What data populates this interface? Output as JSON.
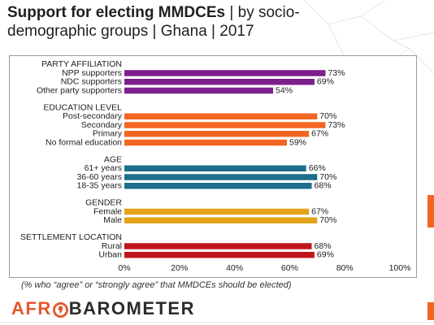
{
  "header": {
    "title_bold": "Support for electing MMDCEs",
    "title_rest": "| by socio-demographic groups | Ghana | 2017"
  },
  "footnote": "(% who “agree” or “strongly agree” that MMDCEs should be elected)",
  "logo": {
    "part1": "AFR",
    "part2": "BAROMETER"
  },
  "colors": {
    "party": "#7d1f8c",
    "education": "#f26522",
    "age": "#1c6e8c",
    "gender": "#e3a31a",
    "settlement": "#c0161b",
    "accent": "#f26522"
  },
  "chart_data": {
    "type": "bar",
    "orientation": "horizontal",
    "xlim": [
      0,
      100
    ],
    "xticks": [
      "0%",
      "20%",
      "40%",
      "60%",
      "80%",
      "100%"
    ],
    "grid": false,
    "groups": [
      {
        "name": "PARTY AFFILIATION",
        "color": "#7d1f8c",
        "bars": [
          {
            "label": "NPP supporters",
            "value": 73
          },
          {
            "label": "NDC supporters",
            "value": 69
          },
          {
            "label": "Other party supporters",
            "value": 54
          }
        ]
      },
      {
        "name": "EDUCATION LEVEL",
        "color": "#f26522",
        "bars": [
          {
            "label": "Post-secondary",
            "value": 70
          },
          {
            "label": "Secondary",
            "value": 73
          },
          {
            "label": "Primary",
            "value": 67
          },
          {
            "label": "No formal education",
            "value": 59
          }
        ]
      },
      {
        "name": "AGE",
        "color": "#1c6e8c",
        "bars": [
          {
            "label": "61+ years",
            "value": 66
          },
          {
            "label": "36-60 years",
            "value": 70
          },
          {
            "label": "18-35 years",
            "value": 68
          }
        ]
      },
      {
        "name": "GENDER",
        "color": "#e3a31a",
        "bars": [
          {
            "label": "Female",
            "value": 67
          },
          {
            "label": "Male",
            "value": 70
          }
        ]
      },
      {
        "name": "SETTLEMENT LOCATION",
        "color": "#c0161b",
        "bars": [
          {
            "label": "Rural",
            "value": 68
          },
          {
            "label": "Urban",
            "value": 69
          }
        ]
      }
    ]
  }
}
